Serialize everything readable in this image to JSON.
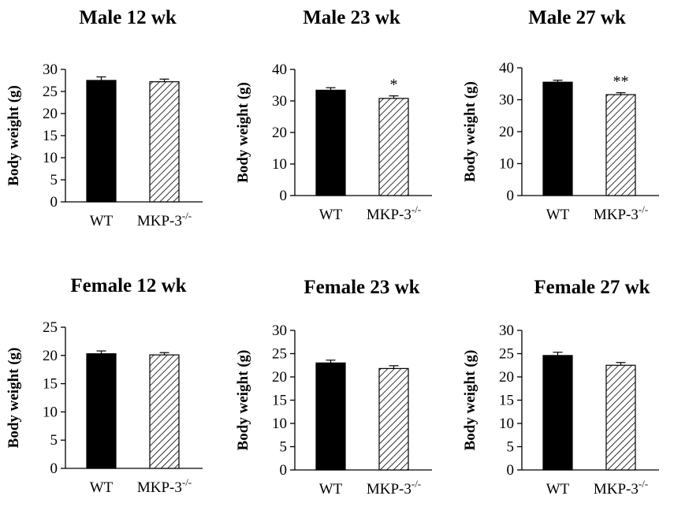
{
  "chart_data": [
    {
      "type": "bar",
      "title": "Male 12 wk",
      "ylabel": "Body weight (g)",
      "categories": [
        "WT",
        "MKP-3"
      ],
      "cat_superscripts": [
        "",
        "-/-"
      ],
      "values": [
        27.5,
        27.2
      ],
      "errors": [
        0.8,
        0.6
      ],
      "fills": [
        "solid",
        "hatched"
      ],
      "significance": [
        "",
        ""
      ],
      "ylim": [
        0,
        30
      ],
      "yticks": [
        0,
        5,
        10,
        15,
        20,
        25,
        30
      ]
    },
    {
      "type": "bar",
      "title": "Male 23 wk",
      "ylabel": "Body weight (g)",
      "categories": [
        "WT",
        "MKP-3"
      ],
      "cat_superscripts": [
        "",
        "-/-"
      ],
      "values": [
        33.4,
        30.8
      ],
      "errors": [
        0.8,
        0.8
      ],
      "fills": [
        "solid",
        "hatched"
      ],
      "significance": [
        "",
        "*"
      ],
      "ylim": [
        0,
        40
      ],
      "yticks": [
        0,
        10,
        20,
        30,
        40
      ]
    },
    {
      "type": "bar",
      "title": "Male 27 wk",
      "ylabel": "Body weight (g)",
      "categories": [
        "WT",
        "MKP-3"
      ],
      "cat_superscripts": [
        "",
        "-/-"
      ],
      "values": [
        35.5,
        31.6
      ],
      "errors": [
        0.6,
        0.6
      ],
      "fills": [
        "solid",
        "hatched"
      ],
      "significance": [
        "",
        "**"
      ],
      "ylim": [
        0,
        40
      ],
      "yticks": [
        0,
        10,
        20,
        30,
        40
      ]
    },
    {
      "type": "bar",
      "title": "Female 12 wk",
      "ylabel": "Body weight (g)",
      "categories": [
        "WT",
        "MKP-3"
      ],
      "cat_superscripts": [
        "",
        "-/-"
      ],
      "values": [
        20.3,
        20.1
      ],
      "errors": [
        0.5,
        0.4
      ],
      "fills": [
        "solid",
        "hatched"
      ],
      "significance": [
        "",
        ""
      ],
      "ylim": [
        0,
        25
      ],
      "yticks": [
        0,
        5,
        10,
        15,
        20,
        25
      ]
    },
    {
      "type": "bar",
      "title": "Female 23 wk",
      "ylabel": "Body weight (g)",
      "categories": [
        "WT",
        "MKP-3"
      ],
      "cat_superscripts": [
        "",
        "-/-"
      ],
      "values": [
        23.0,
        21.8
      ],
      "errors": [
        0.6,
        0.6
      ],
      "fills": [
        "solid",
        "hatched"
      ],
      "significance": [
        "",
        ""
      ],
      "ylim": [
        0,
        30
      ],
      "yticks": [
        0,
        5,
        10,
        15,
        20,
        25,
        30
      ]
    },
    {
      "type": "bar",
      "title": "Female 27 wk",
      "ylabel": "Body weight (g)",
      "categories": [
        "WT",
        "MKP-3"
      ],
      "cat_superscripts": [
        "",
        "-/-"
      ],
      "values": [
        24.6,
        22.5
      ],
      "errors": [
        0.7,
        0.6
      ],
      "fills": [
        "solid",
        "hatched"
      ],
      "significance": [
        "",
        ""
      ],
      "ylim": [
        0,
        30
      ],
      "yticks": [
        0,
        5,
        10,
        15,
        20,
        25,
        30
      ]
    }
  ],
  "colors": {
    "bar_solid": "#000000",
    "hatch_line": "#000000",
    "axis": "#000000",
    "background": "#ffffff"
  }
}
